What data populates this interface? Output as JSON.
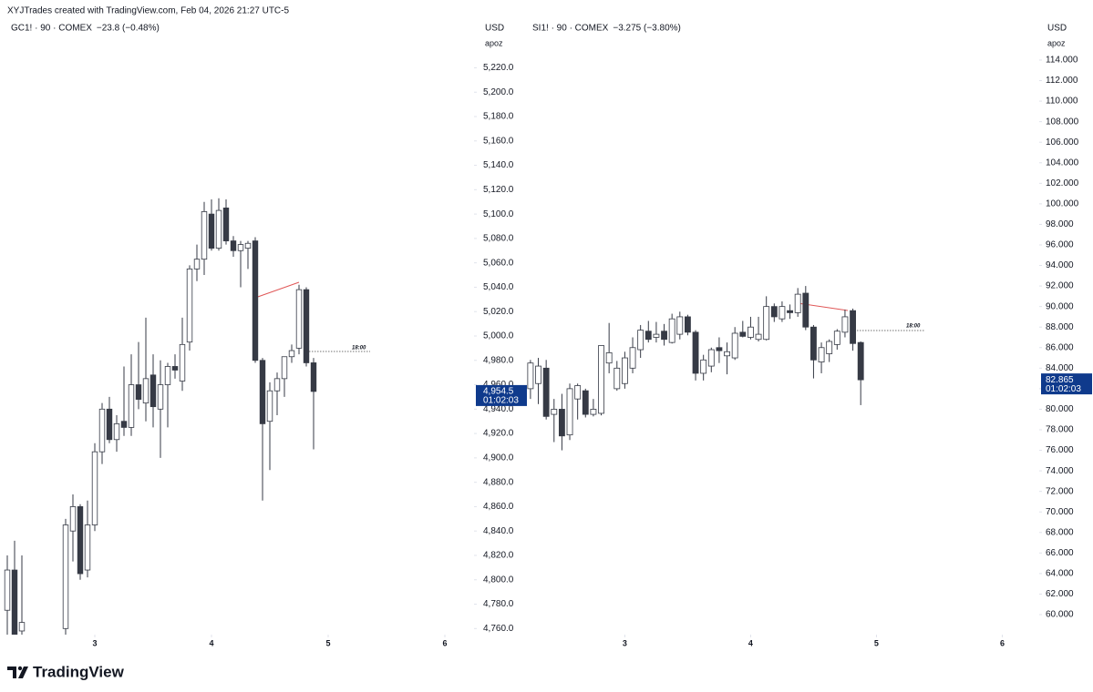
{
  "header": {
    "text": "XYJTrades created with TradingView.com, Feb 04, 2026 21:27 UTC-5"
  },
  "footer": {
    "logo": "TradingView"
  },
  "chart_data": [
    {
      "type": "candlestick",
      "title": "GC1! · 90 · COMEX",
      "change": "−23.8 (−0.48%)",
      "currency": "USD",
      "scale_label": "apoz",
      "colors": {
        "up": "#ffffff",
        "down": "#363a45",
        "wick": "#363a45",
        "label": "#0f3a8c"
      },
      "x": [
        0,
        1,
        2,
        8,
        9,
        10,
        11,
        12,
        13,
        14,
        15,
        16,
        17,
        18,
        19,
        20,
        21,
        22,
        23,
        24,
        25,
        26,
        27,
        28,
        29,
        30,
        31,
        32,
        33,
        34,
        35,
        36,
        37,
        38,
        39,
        40,
        41,
        42
      ],
      "open": [
        4775,
        4808,
        4758,
        4760,
        4840,
        4860,
        4808,
        4845,
        4905,
        4940,
        4915,
        4930,
        4925,
        4960,
        4945,
        4968,
        4940,
        4960,
        4975,
        4963,
        4995,
        5055,
        5063,
        5100,
        5072,
        5105,
        5078,
        5070,
        5072,
        5078,
        4980,
        4930,
        4955,
        4965,
        4983,
        4990,
        5038,
        4978
      ],
      "high": [
        4820,
        4832,
        4820,
        4850,
        4870,
        4862,
        4865,
        4912,
        4945,
        4950,
        4935,
        4975,
        4985,
        4995,
        5015,
        4985,
        4980,
        4978,
        4985,
        5015,
        5058,
        5075,
        5110,
        5112,
        5113,
        5112,
        5082,
        5078,
        5078,
        5081,
        4982,
        4962,
        4970,
        4983,
        4993,
        5042,
        5040,
        4982
      ],
      "low": [
        4745,
        4745,
        4740,
        4750,
        4815,
        4800,
        4802,
        4840,
        4895,
        4912,
        4905,
        4918,
        4918,
        4940,
        4930,
        4925,
        4900,
        4925,
        4965,
        4955,
        4988,
        5045,
        5050,
        5070,
        5070,
        5075,
        5065,
        5040,
        5055,
        4978,
        4865,
        4890,
        4935,
        4950,
        4978,
        4985,
        4975,
        4907
      ],
      "close": [
        4808,
        4755,
        4765,
        4845,
        4860,
        4805,
        4845,
        4905,
        4940,
        4915,
        4928,
        4925,
        4960,
        4948,
        4965,
        4942,
        4960,
        4975,
        4972,
        4993,
        5055,
        5063,
        5102,
        5072,
        5103,
        5078,
        5070,
        5075,
        5076,
        4980,
        4928,
        4955,
        4965,
        4983,
        4988,
        5038,
        4978,
        4954.5
      ],
      "xlim": [
        -1,
        64
      ],
      "xticks": [
        {
          "value": 12,
          "label": "3"
        },
        {
          "value": 28,
          "label": "4"
        },
        {
          "value": 44,
          "label": "5"
        },
        {
          "value": 60,
          "label": "6"
        }
      ],
      "ylim": [
        4755,
        5242
      ],
      "yticks": [
        {
          "value": 4760,
          "label": "4,760.0"
        },
        {
          "value": 4780,
          "label": "4,780.0"
        },
        {
          "value": 4800,
          "label": "4,800.0"
        },
        {
          "value": 4820,
          "label": "4,820.0"
        },
        {
          "value": 4840,
          "label": "4,840.0"
        },
        {
          "value": 4860,
          "label": "4,860.0"
        },
        {
          "value": 4880,
          "label": "4,880.0"
        },
        {
          "value": 4900,
          "label": "4,900.0"
        },
        {
          "value": 4920,
          "label": "4,920.0"
        },
        {
          "value": 4940,
          "label": "4,940.0"
        },
        {
          "value": 4960,
          "label": "4,960.0"
        },
        {
          "value": 4980,
          "label": "4,980.0"
        },
        {
          "value": 5000,
          "label": "5,000.0"
        },
        {
          "value": 5020,
          "label": "5,020.0"
        },
        {
          "value": 5040,
          "label": "5,040.0"
        },
        {
          "value": 5060,
          "label": "5,060.0"
        },
        {
          "value": 5080,
          "label": "5,080.0"
        },
        {
          "value": 5100,
          "label": "5,100.0"
        },
        {
          "value": 5120,
          "label": "5,120.0"
        },
        {
          "value": 5140,
          "label": "5,140.0"
        },
        {
          "value": 5160,
          "label": "5,160.0"
        },
        {
          "value": 5180,
          "label": "5,180.0"
        },
        {
          "value": 5200,
          "label": "5,200.0"
        },
        {
          "value": 5220,
          "label": "5,220.0"
        }
      ],
      "last_price": {
        "value": 4954.5,
        "label": "4,954.5"
      },
      "countdown": "01:02:03",
      "annotation": "18:00"
    },
    {
      "type": "candlestick",
      "title": "SI1! · 90 · COMEX",
      "change": "−3.275 (−3.80%)",
      "currency": "USD",
      "scale_label": "apoz",
      "colors": {
        "up": "#ffffff",
        "down": "#363a45",
        "wick": "#363a45",
        "label": "#0f3a8c"
      },
      "x": [
        0,
        1,
        2,
        3,
        4,
        5,
        6,
        7,
        8,
        9,
        10,
        11,
        12,
        13,
        14,
        15,
        16,
        17,
        18,
        19,
        20,
        21,
        22,
        23,
        24,
        25,
        26,
        27,
        28,
        29,
        30,
        31,
        32,
        33,
        34,
        35,
        36,
        37,
        38,
        39,
        40,
        41,
        42
      ],
      "open": [
        82,
        82.5,
        84,
        79.5,
        80,
        77.5,
        81,
        81.8,
        79.5,
        79.6,
        84.5,
        82,
        82.5,
        84,
        85.8,
        87.6,
        87,
        87.6,
        86.5,
        87.3,
        89,
        87.5,
        83.5,
        84.2,
        86,
        85.2,
        85,
        87.5,
        87,
        86.8,
        86.8,
        90,
        88.8,
        89.6,
        89.4,
        91.3,
        88,
        84.6,
        85.4,
        86.3,
        87.5,
        89.6,
        86.5
      ],
      "high": [
        84.8,
        85,
        84.8,
        81,
        81.5,
        82.5,
        82.5,
        82,
        81,
        86.2,
        88.4,
        84.7,
        85.6,
        87,
        88.2,
        88.6,
        88.5,
        88.3,
        89.3,
        89.5,
        89.2,
        87.7,
        85.3,
        86,
        87,
        86.5,
        88,
        88.6,
        89,
        89,
        91,
        90.3,
        90.5,
        90.2,
        91.8,
        92,
        88.2,
        86.5,
        86.8,
        87.8,
        89.7,
        89.8,
        86.6
      ],
      "low": [
        81,
        80.5,
        79,
        76.8,
        76,
        77,
        79,
        79.2,
        79.3,
        79.4,
        83.5,
        81.8,
        82,
        83.5,
        85,
        86.5,
        86.5,
        86.2,
        86.4,
        86.8,
        87.2,
        82.8,
        82.8,
        83.6,
        84.5,
        83.4,
        84.8,
        87,
        86.8,
        86.6,
        86.7,
        88.5,
        88.5,
        88.8,
        89,
        87.7,
        83,
        83.5,
        84.6,
        85.8,
        87,
        85.7,
        80.4
      ],
      "close": [
        84.5,
        84.2,
        79.3,
        80,
        77.4,
        82,
        82.3,
        79.5,
        80,
        86.2,
        85.5,
        84,
        85,
        86,
        87.7,
        86.8,
        87.3,
        86.8,
        88.8,
        89,
        87.5,
        83.5,
        84.8,
        85.8,
        85.7,
        85.6,
        87.4,
        87.1,
        88,
        87.3,
        90,
        89,
        90,
        89.4,
        91.2,
        88,
        84.8,
        86,
        86.6,
        87.6,
        89,
        86.4,
        82.865
      ],
      "xlim": [
        -0.8,
        64.7
      ],
      "xticks": [
        {
          "value": 12,
          "label": "3"
        },
        {
          "value": 28,
          "label": "4"
        },
        {
          "value": 44,
          "label": "5"
        },
        {
          "value": 60,
          "label": "6"
        }
      ],
      "ylim": [
        58.05,
        115.86
      ],
      "yticks": [
        {
          "value": 60,
          "label": "60.000"
        },
        {
          "value": 62,
          "label": "62.000"
        },
        {
          "value": 64,
          "label": "64.000"
        },
        {
          "value": 66,
          "label": "66.000"
        },
        {
          "value": 68,
          "label": "68.000"
        },
        {
          "value": 70,
          "label": "70.000"
        },
        {
          "value": 72,
          "label": "72.000"
        },
        {
          "value": 74,
          "label": "74.000"
        },
        {
          "value": 76,
          "label": "76.000"
        },
        {
          "value": 78,
          "label": "78.000"
        },
        {
          "value": 80,
          "label": "80.000"
        },
        {
          "value": 82,
          "label": "82.000"
        },
        {
          "value": 84,
          "label": "84.000"
        },
        {
          "value": 86,
          "label": "86.000"
        },
        {
          "value": 88,
          "label": "88.000"
        },
        {
          "value": 90,
          "label": "90.000"
        },
        {
          "value": 92,
          "label": "92.000"
        },
        {
          "value": 94,
          "label": "94.000"
        },
        {
          "value": 96,
          "label": "96.000"
        },
        {
          "value": 98,
          "label": "98.000"
        },
        {
          "value": 100,
          "label": "100.000"
        },
        {
          "value": 102,
          "label": "102.000"
        },
        {
          "value": 104,
          "label": "104.000"
        },
        {
          "value": 106,
          "label": "106.000"
        },
        {
          "value": 108,
          "label": "108.000"
        },
        {
          "value": 110,
          "label": "110.000"
        },
        {
          "value": 112,
          "label": "112.000"
        },
        {
          "value": 114,
          "label": "114.000"
        }
      ],
      "last_price": {
        "value": 82.865,
        "label": "82.865"
      },
      "countdown": "01:02:03",
      "annotation": "18:00"
    }
  ]
}
